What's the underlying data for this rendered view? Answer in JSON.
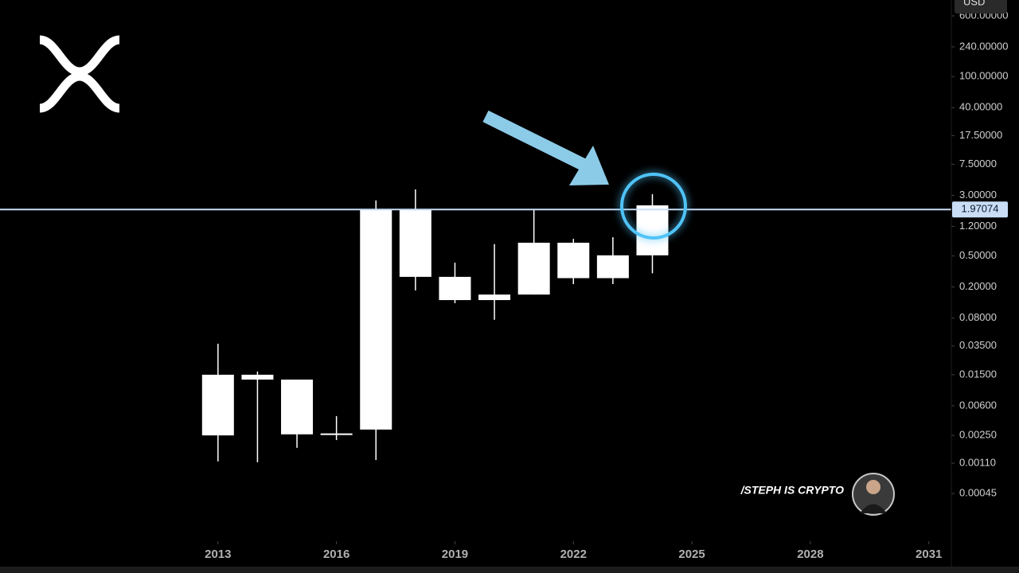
{
  "chart_data": {
    "type": "candlestick",
    "x": [
      2013,
      2014,
      2015,
      2016,
      2017,
      2018,
      2019,
      2020,
      2021,
      2022,
      2023,
      2024
    ],
    "open": [
      0.0025,
      0.015,
      0.013,
      0.00258,
      0.00297,
      2.0,
      0.27,
      0.136,
      0.16,
      0.74,
      0.26,
      0.51
    ],
    "high": [
      0.0375,
      0.0165,
      0.013,
      0.00442,
      2.58,
      3.57,
      0.41,
      0.71,
      1.97,
      0.83,
      0.87,
      3.1
    ],
    "low": [
      0.00116,
      0.00113,
      0.00173,
      0.00218,
      0.00121,
      0.181,
      0.124,
      0.076,
      0.16,
      0.218,
      0.218,
      0.3
    ],
    "close": [
      0.015,
      0.013,
      0.00258,
      0.00265,
      2.0,
      0.27,
      0.136,
      0.16,
      0.74,
      0.26,
      0.51,
      2.23
    ],
    "color": "#ffffff",
    "log_scale": true,
    "xlim": [
      2007.48,
      2031.57
    ],
    "xticks": [
      2013,
      2016,
      2019,
      2022,
      2025,
      2028,
      2031
    ],
    "ylim": [
      0.00011,
      960
    ],
    "yticks": [
      {
        "value": 600,
        "label": "600.00000"
      },
      {
        "value": 240,
        "label": "240.00000"
      },
      {
        "value": 100,
        "label": "100.00000"
      },
      {
        "value": 40,
        "label": "40.00000"
      },
      {
        "value": 17.5,
        "label": "17.50000"
      },
      {
        "value": 7.5,
        "label": "7.50000"
      },
      {
        "value": 3,
        "label": "3.00000"
      },
      {
        "value": 1.2,
        "label": "1.20000"
      },
      {
        "value": 0.5,
        "label": "0.50000"
      },
      {
        "value": 0.2,
        "label": "0.20000"
      },
      {
        "value": 0.08,
        "label": "0.08000"
      },
      {
        "value": 0.035,
        "label": "0.03500"
      },
      {
        "value": 0.015,
        "label": "0.01500"
      },
      {
        "value": 0.006,
        "label": "0.00600"
      },
      {
        "value": 0.0025,
        "label": "0.00250"
      },
      {
        "value": 0.0011,
        "label": "0.00110"
      },
      {
        "value": 0.00045,
        "label": "0.00045"
      }
    ],
    "price_line": 1.97074,
    "price_line_color": "#c9ddf5",
    "currency": "USD",
    "watermark": "/STEPH IS CRYPTO"
  }
}
